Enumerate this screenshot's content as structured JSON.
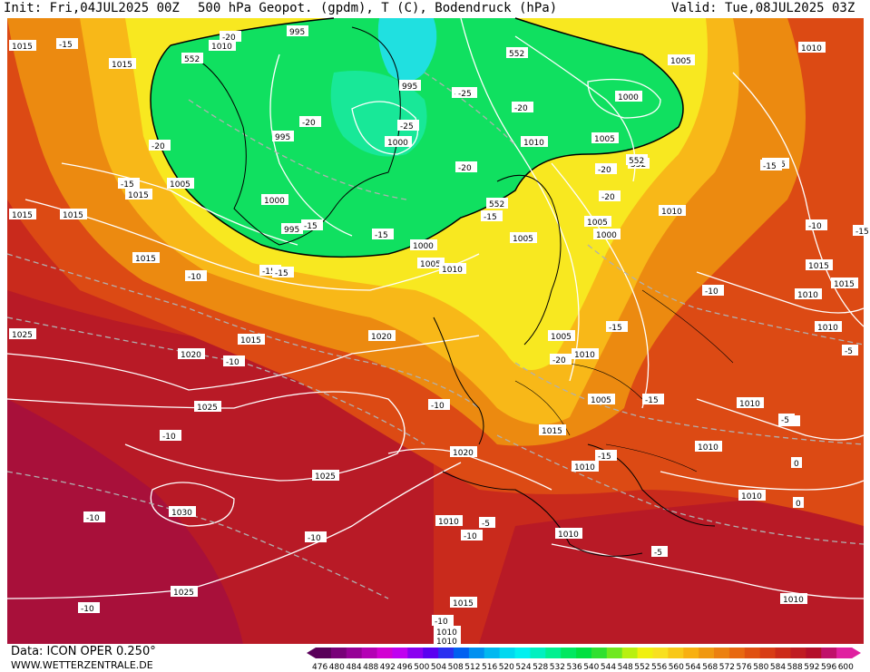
{
  "header": {
    "init": "Init: Fri,04JUL2025 00Z",
    "title": "500 hPa Geopot. (gpdm), T (C), Bodendruck (hPa)",
    "valid": "Valid: Tue,08JUL2025 03Z"
  },
  "footer": {
    "data_source": "Data: ICON OPER 0.250°",
    "website": "WWW.WETTERZENTRALE.DE"
  },
  "colors": {
    "deep_red": "#b00f2a",
    "red": "#c92a1c",
    "orange_red": "#dc4a14",
    "orange": "#ec8a10",
    "yellow_orange": "#f8b818",
    "yellow": "#f8e820",
    "green": "#10e060",
    "cyan": "#20e0e0"
  },
  "legend": {
    "values": [
      "476",
      "480",
      "484",
      "488",
      "492",
      "496",
      "500",
      "504",
      "508",
      "512",
      "516",
      "520",
      "524",
      "528",
      "532",
      "536",
      "540",
      "544",
      "548",
      "552",
      "556",
      "560",
      "564",
      "568",
      "572",
      "576",
      "580",
      "584",
      "588",
      "592",
      "596",
      "600"
    ],
    "colors": [
      "#5a005a",
      "#780078",
      "#960096",
      "#b400b4",
      "#d200d2",
      "#c000f0",
      "#8a00f0",
      "#5a00f0",
      "#2a30f0",
      "#0060f0",
      "#0090f0",
      "#00b8f0",
      "#00d8f0",
      "#00f0f0",
      "#00f0c0",
      "#00f090",
      "#00e860",
      "#00e040",
      "#30e030",
      "#70e820",
      "#b8f010",
      "#f0f010",
      "#f8e020",
      "#f8c818",
      "#f8b010",
      "#f09810",
      "#ec8010",
      "#e86810",
      "#e05010",
      "#d83c14",
      "#cc2a18",
      "#c01c22",
      "#b40f2a",
      "#c0106a",
      "#e020a0"
    ]
  },
  "map_labels": {
    "pressure": [
      {
        "text": "1015"
      },
      {
        "text": "1010"
      },
      {
        "text": "995"
      },
      {
        "text": "552"
      },
      {
        "text": "552"
      },
      {
        "text": "1010"
      },
      {
        "text": "1015"
      },
      {
        "text": "1005"
      },
      {
        "text": "995"
      },
      {
        "text": "1000"
      },
      {
        "text": "995"
      },
      {
        "text": "1000"
      },
      {
        "text": "1005"
      },
      {
        "text": "1010"
      },
      {
        "text": "552"
      },
      {
        "text": "1005"
      },
      {
        "text": "1015"
      },
      {
        "text": "1000"
      },
      {
        "text": "1015"
      },
      {
        "text": "1015"
      },
      {
        "text": "995"
      },
      {
        "text": "552"
      },
      {
        "text": "1010"
      },
      {
        "text": "1005"
      },
      {
        "text": "1000"
      },
      {
        "text": "1005"
      },
      {
        "text": "1000"
      },
      {
        "text": "1015"
      },
      {
        "text": "1005"
      },
      {
        "text": "1010"
      },
      {
        "text": "1015"
      },
      {
        "text": "1015"
      },
      {
        "text": "1010"
      },
      {
        "text": "1015"
      },
      {
        "text": "1010"
      },
      {
        "text": "1025"
      },
      {
        "text": "1020"
      },
      {
        "text": "1015"
      },
      {
        "text": "1020"
      },
      {
        "text": "1005"
      },
      {
        "text": "1010"
      },
      {
        "text": "1025"
      },
      {
        "text": "1005"
      },
      {
        "text": "1010"
      },
      {
        "text": "1015"
      },
      {
        "text": "1010"
      },
      {
        "text": "1020"
      },
      {
        "text": "1010"
      },
      {
        "text": "1025"
      },
      {
        "text": "1030"
      },
      {
        "text": "1010"
      },
      {
        "text": "1010"
      },
      {
        "text": "1010"
      },
      {
        "text": "1025"
      },
      {
        "text": "1015"
      },
      {
        "text": "1010"
      },
      {
        "text": "1010"
      },
      {
        "text": "1010"
      },
      {
        "text": "552"
      }
    ],
    "temperature": [
      {
        "text": "-15"
      },
      {
        "text": "-20"
      },
      {
        "text": "-20"
      },
      {
        "text": "-25"
      },
      {
        "text": "-25"
      },
      {
        "text": "-20"
      },
      {
        "text": "-20"
      },
      {
        "text": "-20"
      },
      {
        "text": "-20"
      },
      {
        "text": "-15"
      },
      {
        "text": "-15"
      },
      {
        "text": "-20"
      },
      {
        "text": "-15"
      },
      {
        "text": "-15"
      },
      {
        "text": "-20"
      },
      {
        "text": "-15"
      },
      {
        "text": "-15"
      },
      {
        "text": "-15"
      },
      {
        "text": "-15"
      },
      {
        "text": "-10"
      },
      {
        "text": "-10"
      },
      {
        "text": "-15"
      },
      {
        "text": "-10"
      },
      {
        "text": "-10"
      },
      {
        "text": "-10"
      },
      {
        "text": "-15"
      },
      {
        "text": "-20"
      },
      {
        "text": "-10"
      },
      {
        "text": "-15"
      },
      {
        "text": "-10"
      },
      {
        "text": "-10"
      },
      {
        "text": "-10"
      },
      {
        "text": "-10"
      },
      {
        "text": "-5"
      },
      {
        "text": "-10"
      },
      {
        "text": "-5"
      },
      {
        "text": "-5"
      },
      {
        "text": "-10"
      },
      {
        "text": "-5"
      },
      {
        "text": "0"
      },
      {
        "text": "0"
      }
    ]
  }
}
